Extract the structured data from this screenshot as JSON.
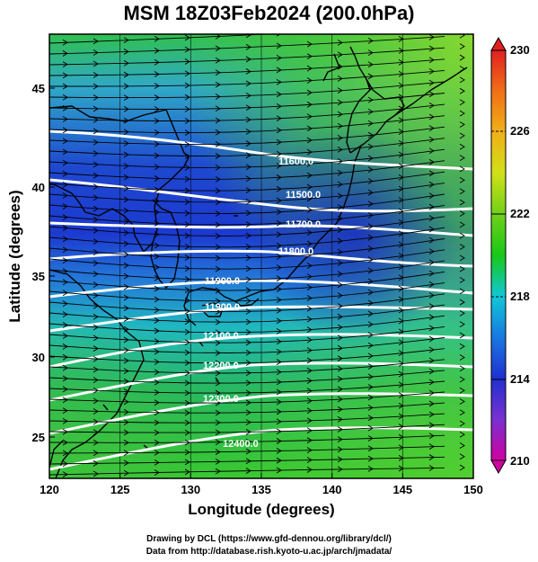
{
  "title": "MSM 18Z03Feb2024 (200.0hPa)",
  "x_axis": {
    "label": "Longitude (degrees)",
    "ticks": [
      "120",
      "125",
      "130",
      "135",
      "140",
      "145",
      "150"
    ],
    "range": [
      120,
      150
    ]
  },
  "y_axis": {
    "label": "Latitude  (degrees)",
    "ticks": [
      "25",
      "30",
      "35",
      "40",
      "45"
    ],
    "range": [
      22.4,
      47.6
    ]
  },
  "colorbar": {
    "labels": [
      "230",
      "226",
      "222",
      "218",
      "214",
      "210"
    ],
    "range": [
      210,
      230
    ],
    "colors": [
      "#d000a0",
      "#7a30d0",
      "#2030d0",
      "#1878e0",
      "#10c8d8",
      "#20c890",
      "#18c818",
      "#70d018",
      "#d0e018",
      "#f0b018",
      "#f07018",
      "#e02020"
    ]
  },
  "contours": {
    "color": "#ffffff",
    "labels": [
      "11600.0",
      "11500.0",
      "11700.0",
      "11800.0",
      "11900.0",
      "11900.0",
      "12100.0",
      "12200.0",
      "12300.0",
      "12400.0"
    ]
  },
  "credits": {
    "line1": "Drawing by DCL (https://www.gfd-dennou.org/library/dcl/)",
    "line2": "Data from http://database.rish.kyoto-u.ac.jp/arch/jmadata/"
  }
}
